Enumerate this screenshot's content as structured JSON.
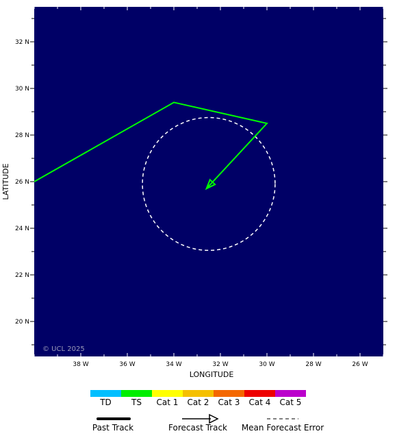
{
  "map": {
    "background_color": "#000066",
    "lon_range": [
      -40,
      -25
    ],
    "lat_range": [
      18.5,
      33.5
    ],
    "x_ticks": [
      {
        "value": -38,
        "label": "38 W"
      },
      {
        "value": -36,
        "label": "36 W"
      },
      {
        "value": -34,
        "label": "34 W"
      },
      {
        "value": -32,
        "label": "32 W"
      },
      {
        "value": -30,
        "label": "30 W"
      },
      {
        "value": -28,
        "label": "28 W"
      },
      {
        "value": -26,
        "label": "26 W"
      }
    ],
    "y_ticks": [
      {
        "value": 32,
        "label": "32 N"
      },
      {
        "value": 30,
        "label": "30 N"
      },
      {
        "value": 28,
        "label": "28 N"
      },
      {
        "value": 26,
        "label": "26 N"
      },
      {
        "value": 24,
        "label": "24 N"
      },
      {
        "value": 22,
        "label": "22 N"
      },
      {
        "value": 20,
        "label": "20 N"
      }
    ],
    "xlabel": "LONGITUDE",
    "ylabel": "LATITUDE",
    "copyright": "© UCL 2025"
  },
  "forecast_track": {
    "color": "#00ff00",
    "points": [
      {
        "lon": -40.0,
        "lat": 26.0
      },
      {
        "lon": -34.0,
        "lat": 29.4
      },
      {
        "lon": -30.0,
        "lat": 28.5
      },
      {
        "lon": -32.6,
        "lat": 25.7
      }
    ]
  },
  "error_circle": {
    "center_lon": -32.5,
    "center_lat": 25.9,
    "radius_deg": 2.85,
    "color": "#ffffff"
  },
  "legend": {
    "categories": [
      {
        "label": "TD",
        "color": "#00bfff"
      },
      {
        "label": "TS",
        "color": "#00ee00"
      },
      {
        "label": "Cat 1",
        "color": "#ffff00"
      },
      {
        "label": "Cat 2",
        "color": "#f5c000"
      },
      {
        "label": "Cat 3",
        "color": "#f46800"
      },
      {
        "label": "Cat 4",
        "color": "#ee0000"
      },
      {
        "label": "Cat 5",
        "color": "#bb00cc"
      }
    ],
    "past_track_label": "Past Track",
    "forecast_track_label": "Forecast Track",
    "mean_error_label": "Mean Forecast Error"
  }
}
